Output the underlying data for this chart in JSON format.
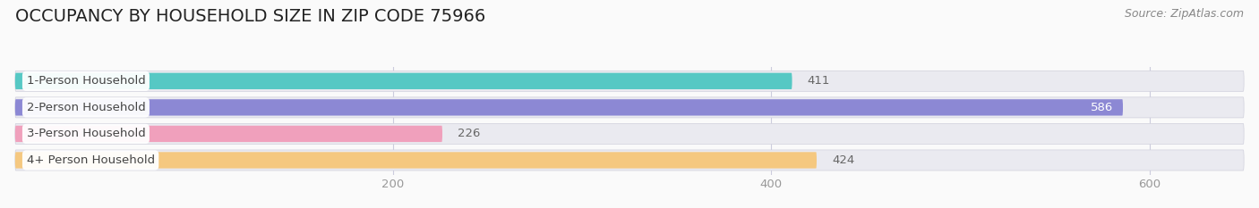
{
  "title": "OCCUPANCY BY HOUSEHOLD SIZE IN ZIP CODE 75966",
  "source": "Source: ZipAtlas.com",
  "categories": [
    "1-Person Household",
    "2-Person Household",
    "3-Person Household",
    "4+ Person Household"
  ],
  "values": [
    411,
    586,
    226,
    424
  ],
  "bar_colors": [
    "#56C8C4",
    "#8C88D4",
    "#F0A0BC",
    "#F5C880"
  ],
  "bar_bg_color": "#EAEAF0",
  "xlim_max": 650,
  "data_max": 650,
  "xticks": [
    200,
    400,
    600
  ],
  "title_fontsize": 14,
  "source_fontsize": 9,
  "label_fontsize": 9.5,
  "value_fontsize": 9.5,
  "bg_color": "#FAFAFA",
  "grid_color": "#CCCCDD",
  "label_text_color": "#444444",
  "value_color_inside": "#FFFFFF",
  "value_color_outside": "#666666",
  "tick_color": "#999999"
}
